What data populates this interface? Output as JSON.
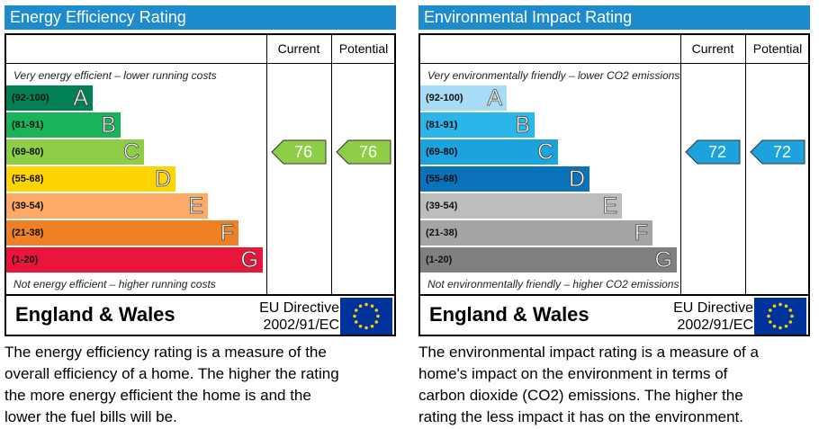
{
  "panels": [
    {
      "title": "Energy Efficiency Rating",
      "columns": [
        "Current",
        "Potential"
      ],
      "top_note": "Very energy efficient – lower running costs",
      "bottom_note": "Not energy efficient – higher running costs",
      "bands": [
        {
          "range": "(92-100)",
          "letter": "A",
          "color": "#008054"
        },
        {
          "range": "(81-91)",
          "letter": "B",
          "color": "#19b459"
        },
        {
          "range": "(69-80)",
          "letter": "C",
          "color": "#8dce46"
        },
        {
          "range": "(55-68)",
          "letter": "D",
          "color": "#ffd500"
        },
        {
          "range": "(39-54)",
          "letter": "E",
          "color": "#fcaa65"
        },
        {
          "range": "(21-38)",
          "letter": "F",
          "color": "#ef8023"
        },
        {
          "range": "(1-20)",
          "letter": "G",
          "color": "#e9153b"
        }
      ],
      "current": 76,
      "potential": 76,
      "region": "England & Wales",
      "directive": [
        "EU Directive",
        "2002/91/EC"
      ],
      "description": [
        "The energy efficiency rating is a measure of the",
        "overall efficiency of a home.  The higher the rating",
        "the more energy efficient the home is and the",
        "lower the fuel bills will be."
      ]
    },
    {
      "title": "Environmental Impact Rating",
      "columns": [
        "Current",
        "Potential"
      ],
      "top_note": "Very environmentally friendly – lower CO2 emissions",
      "bottom_note": "Not environmentally friendly – higher CO2 emissions",
      "bands": [
        {
          "range": "(92-100)",
          "letter": "A",
          "color": "#a6dcf5"
        },
        {
          "range": "(81-91)",
          "letter": "B",
          "color": "#2ab6e8"
        },
        {
          "range": "(69-80)",
          "letter": "C",
          "color": "#1ca2dd"
        },
        {
          "range": "(55-68)",
          "letter": "D",
          "color": "#0a72b8"
        },
        {
          "range": "(39-54)",
          "letter": "E",
          "color": "#bdbdbd"
        },
        {
          "range": "(21-38)",
          "letter": "F",
          "color": "#a5a5a5"
        },
        {
          "range": "(1-20)",
          "letter": "G",
          "color": "#808080"
        }
      ],
      "current": 72,
      "potential": 72,
      "region": "England & Wales",
      "directive": [
        "EU Directive",
        "2002/91/EC"
      ],
      "description": [
        "The environmental impact rating is a measure of a",
        "home's impact on the environment in terms of",
        "carbon dioxide (CO2) emissions.  The higher the",
        "rating the less impact it has on the environment."
      ]
    }
  ]
}
